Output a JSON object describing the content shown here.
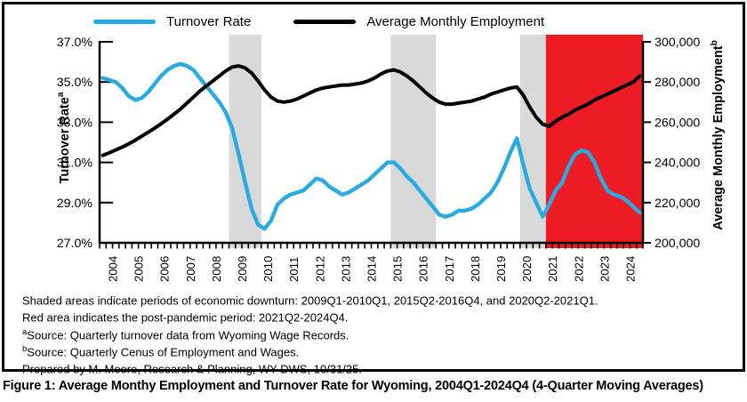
{
  "figure": {
    "caption": "Figure 1: Average Monthy Employment and Turnover Rate for Wyoming, 2004Q1-2024Q4 (4-Quarter Moving Averages)"
  },
  "legend": [
    {
      "label": "Turnover Rate",
      "color": "#29ABE2"
    },
    {
      "label": "Average Monthly Employment",
      "color": "#000000"
    }
  ],
  "axes": {
    "left": {
      "title": "Turnover Rate",
      "title_sup": "a",
      "ticks": [
        "37.0%",
        "35.0%",
        "33.0%",
        "31.0%",
        "29.0%",
        "27.0%"
      ]
    },
    "right": {
      "title": "Average Monthly Employment",
      "title_sup": "b",
      "ticks": [
        "300,000",
        "280,000",
        "260,000",
        "240,000",
        "220,000",
        "200,000"
      ]
    },
    "x": {
      "years": [
        "2004",
        "2005",
        "2006",
        "2007",
        "2008",
        "2009",
        "2010",
        "2011",
        "2012",
        "2013",
        "2014",
        "2015",
        "2016",
        "2017",
        "2018",
        "2019",
        "2020",
        "2021",
        "2022",
        "2023",
        "2024"
      ]
    }
  },
  "notes": [
    {
      "sup": "",
      "text": "Shaded areas indicate periods of economic downturn: 2009Q1-2010Q1, 2015Q2-2016Q4, and 2020Q2-2021Q1."
    },
    {
      "sup": "",
      "text": "Red area indicates the post-pandemic period: 2021Q2-2024Q4."
    },
    {
      "sup": "a",
      "text": "Source: Quarterly turnover data from Wyoming Wage Records."
    },
    {
      "sup": "b",
      "text": "Source: Quarterly Cenus of Employment and Wages."
    },
    {
      "sup": "",
      "text": "Prepared by M. Moore, Research & Planning, WY DWS, 10/31/25."
    }
  ],
  "chart_data": {
    "type": "line",
    "title": "Average Monthly Employment and Turnover Rate for Wyoming, 4-Quarter Moving Averages",
    "x_start": "2004Q1",
    "x_end": "2024Q4",
    "left_axis": {
      "label": "Turnover Rate",
      "min": 27.0,
      "max": 37.0,
      "tick_step": 2.0
    },
    "right_axis": {
      "label": "Average Monthly Employment",
      "min": 200000,
      "max": 300000,
      "tick_step": 20000
    },
    "bands": [
      {
        "label": "economic downturn",
        "start": "2009Q1",
        "end": "2010Q1",
        "color": "#D9D9D9"
      },
      {
        "label": "economic downturn",
        "start": "2015Q2",
        "end": "2016Q4",
        "color": "#D9D9D9"
      },
      {
        "label": "economic downturn",
        "start": "2020Q2",
        "end": "2021Q1",
        "color": "#D9D9D9"
      },
      {
        "label": "post-pandemic period",
        "start": "2021Q2",
        "end": "2024Q4",
        "color": "#ED1C24"
      }
    ],
    "series": [
      {
        "name": "Turnover Rate",
        "axis": "left",
        "unit": "%",
        "color": "#29ABE2",
        "values": [
          35.2,
          35.1,
          35.0,
          34.7,
          34.3,
          34.1,
          34.2,
          34.5,
          34.9,
          35.3,
          35.6,
          35.8,
          35.9,
          35.8,
          35.6,
          35.2,
          34.8,
          34.4,
          34.0,
          33.5,
          32.7,
          31.4,
          30.0,
          28.7,
          27.9,
          27.7,
          28.1,
          28.9,
          29.2,
          29.4,
          29.5,
          29.6,
          29.9,
          30.2,
          30.1,
          29.8,
          29.6,
          29.4,
          29.5,
          29.7,
          29.9,
          30.1,
          30.4,
          30.7,
          31.0,
          31.0,
          30.7,
          30.3,
          30.0,
          29.6,
          29.2,
          28.8,
          28.4,
          28.3,
          28.4,
          28.6,
          28.6,
          28.7,
          28.9,
          29.2,
          29.5,
          30.0,
          30.7,
          31.5,
          32.2,
          30.9,
          29.7,
          29.0,
          28.3,
          28.9,
          29.6,
          30.0,
          30.8,
          31.4,
          31.6,
          31.5,
          31.0,
          30.2,
          29.6,
          29.4,
          29.3,
          29.1,
          28.8,
          28.5
        ]
      },
      {
        "name": "Average Monthly Employment",
        "axis": "right",
        "unit": "jobs",
        "color": "#000000",
        "values": [
          243500,
          244800,
          246200,
          247600,
          249200,
          251000,
          253000,
          255000,
          257000,
          259200,
          261500,
          264000,
          266500,
          269500,
          272500,
          275500,
          278000,
          280500,
          283000,
          285500,
          287500,
          288000,
          287000,
          284500,
          280500,
          276000,
          272500,
          270500,
          270000,
          270500,
          271500,
          273000,
          274500,
          276000,
          277000,
          277500,
          278000,
          278500,
          278500,
          279000,
          279500,
          280500,
          282000,
          284000,
          285500,
          286000,
          285000,
          283000,
          280500,
          277500,
          274500,
          272000,
          270000,
          269000,
          269000,
          269500,
          270000,
          270500,
          271500,
          272500,
          274000,
          275000,
          276000,
          277000,
          277500,
          273500,
          267500,
          262500,
          259000,
          258000,
          260500,
          262500,
          264000,
          266000,
          267500,
          269000,
          271000,
          272500,
          274000,
          275500,
          277000,
          278500,
          280000,
          283000
        ]
      }
    ]
  }
}
